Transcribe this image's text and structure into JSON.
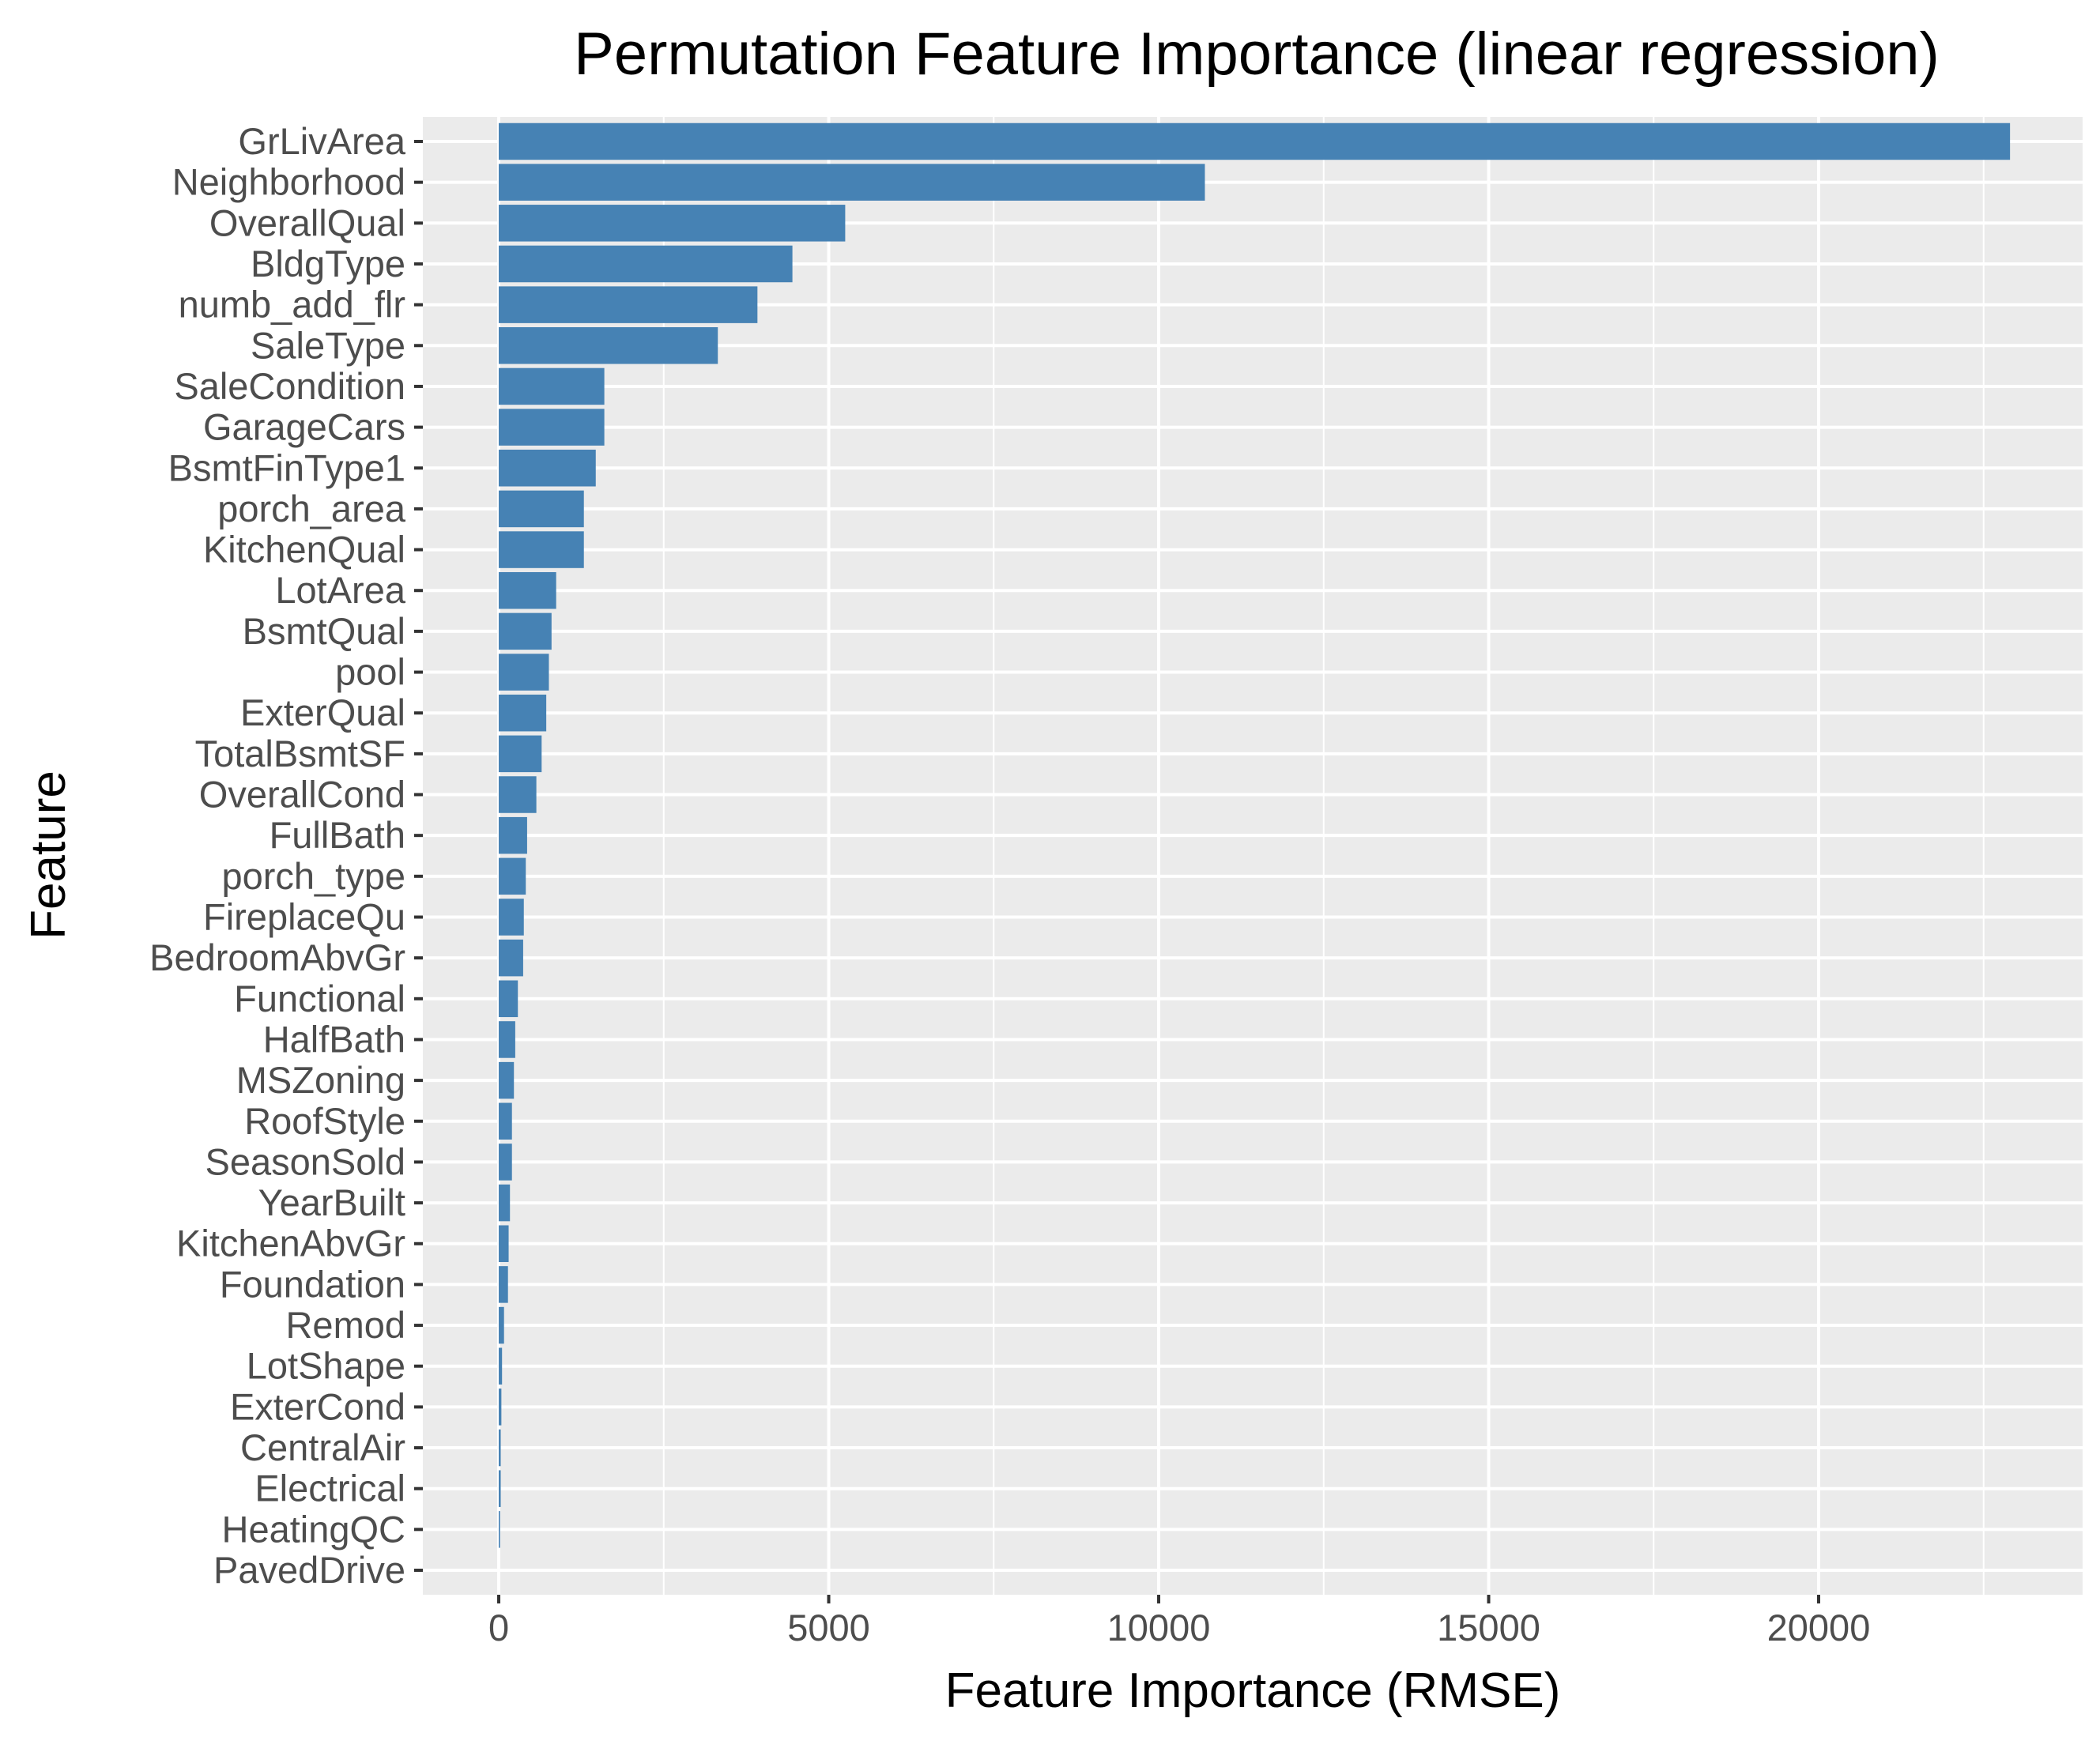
{
  "chart_data": {
    "type": "bar",
    "orientation": "horizontal",
    "title": "Permutation Feature Importance (linear regression)",
    "xlabel": "Feature Importance (RMSE)",
    "ylabel": "Feature",
    "xlim": [
      -1150,
      24000
    ],
    "x_ticks": [
      0,
      5000,
      10000,
      15000,
      20000
    ],
    "x_tick_labels": [
      "0",
      "5000",
      "10000",
      "15000",
      "20000"
    ],
    "grid": true,
    "colors": {
      "bar": "#4682B4",
      "panel_background": "#EBEBEB",
      "grid_line": "#FFFFFF",
      "tick_label": "#4D4D4D",
      "tick_mark": "#333333"
    },
    "categories": [
      "GrLivArea",
      "Neighborhood",
      "OverallQual",
      "BldgType",
      "numb_add_flr",
      "SaleType",
      "SaleCondition",
      "GarageCars",
      "BsmtFinType1",
      "porch_area",
      "KitchenQual",
      "LotArea",
      "BsmtQual",
      "pool",
      "ExterQual",
      "TotalBsmtSF",
      "OverallCond",
      "FullBath",
      "porch_type",
      "FireplaceQu",
      "BedroomAbvGr",
      "Functional",
      "HalfBath",
      "MSZoning",
      "RoofStyle",
      "SeasonSold",
      "YearBuilt",
      "KitchenAbvGr",
      "Foundation",
      "Remod",
      "LotShape",
      "ExterCond",
      "CentralAir",
      "Electrical",
      "HeatingQC",
      "PavedDrive"
    ],
    "values": [
      22900,
      10700,
      5250,
      4450,
      3920,
      3320,
      1600,
      1600,
      1470,
      1290,
      1290,
      870,
      800,
      760,
      720,
      650,
      570,
      430,
      410,
      380,
      370,
      290,
      250,
      230,
      200,
      200,
      170,
      150,
      140,
      80,
      50,
      40,
      30,
      30,
      20,
      0
    ]
  }
}
